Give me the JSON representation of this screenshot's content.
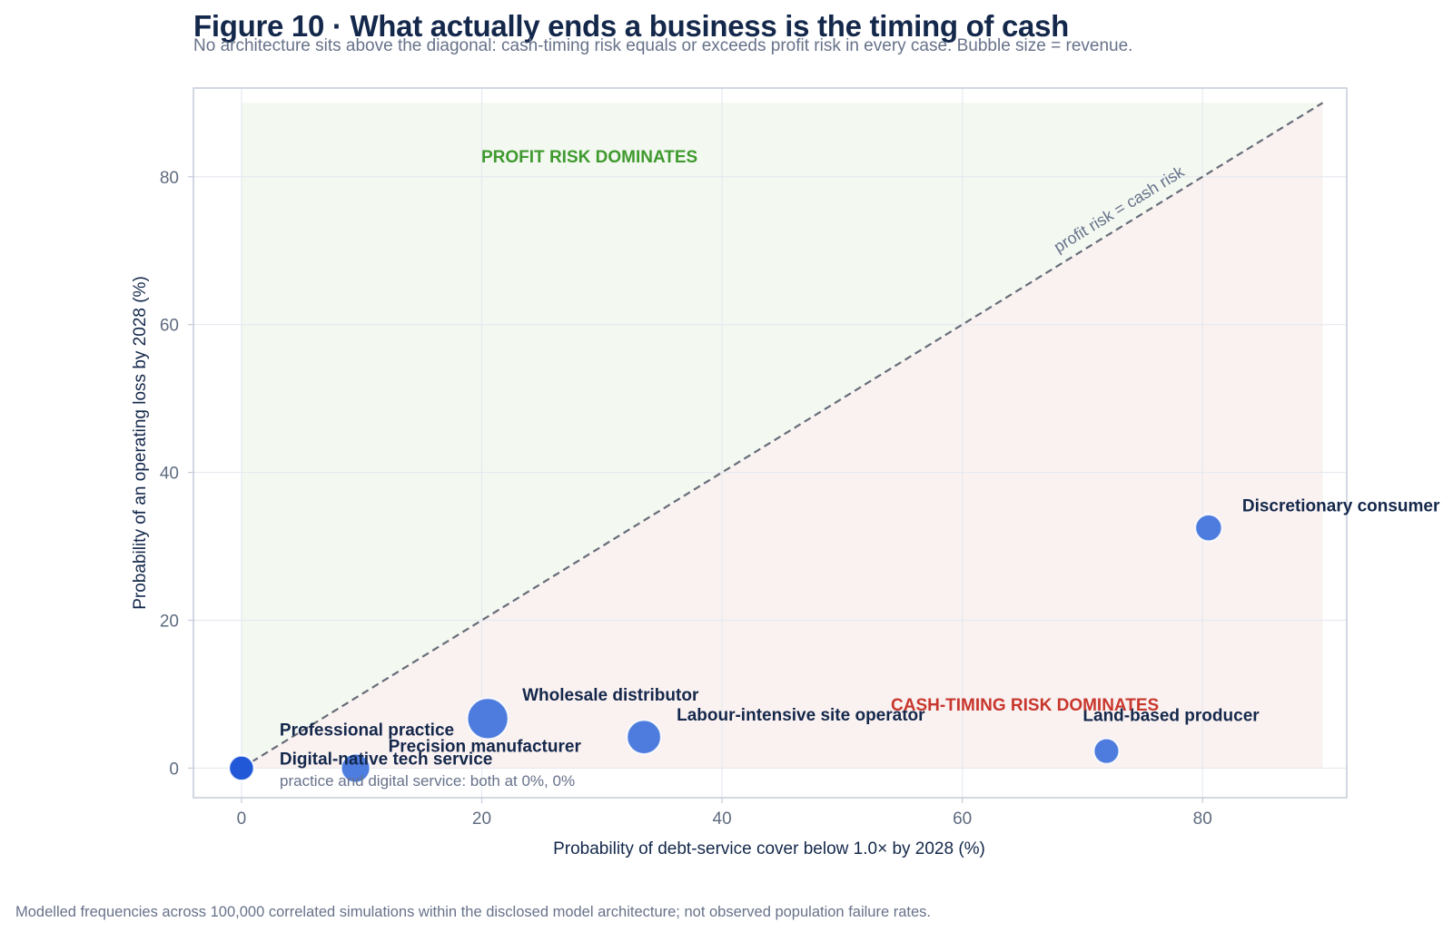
{
  "figure": {
    "title": "Figure 10  ·  What actually ends a business is the timing of cash",
    "subtitle": "No architecture sits above the diagonal: cash-timing risk equals or exceeds profit risk in every case. Bubble size = revenue.",
    "footnote": "Modelled frequencies across 100,000 correlated simulations within the disclosed model architecture; not observed population failure rates."
  },
  "colors": {
    "bubble": "#3a6fdc",
    "bubble_dark": "#1f56d6",
    "profit_region": "#f3f8f1",
    "cash_region": "#faf1f1",
    "profit_label": "#3f9a2e",
    "cash_label": "#c8372d",
    "diagonal": "#676d78",
    "grid": "#e6eaf0",
    "frame": "#c3ccd8"
  },
  "chart_data": {
    "type": "scatter",
    "xlabel": "Probability of debt-service cover below 1.0× by 2028 (%)",
    "ylabel": "Probability of an operating loss by 2028 (%)",
    "xlim": [
      -4,
      92
    ],
    "ylim": [
      -4,
      92
    ],
    "xticks": [
      "0",
      "20",
      "40",
      "60",
      "80"
    ],
    "yticks": [
      "0",
      "20",
      "40",
      "60",
      "80"
    ],
    "grid": true,
    "diagonal": {
      "from": [
        0,
        0
      ],
      "to": [
        90,
        90
      ],
      "label": "profit risk = cash risk"
    },
    "regions": {
      "profit": "PROFIT RISK DOMINATES",
      "cash": "CASH-TIMING RISK DOMINATES"
    },
    "annotation": "practice and digital service: both at 0%, 0%",
    "points": [
      {
        "name": "Professional practice",
        "x": 0,
        "y": 0,
        "size": 1.0
      },
      {
        "name": "Digital-native tech service",
        "x": 0,
        "y": 0,
        "size": 0.95
      },
      {
        "name": "Precision manufacturer",
        "x": 9.5,
        "y": 0,
        "size": 1.3
      },
      {
        "name": "Wholesale distributor",
        "x": 20.5,
        "y": 6.7,
        "size": 2.6
      },
      {
        "name": "Labour-intensive site operator",
        "x": 33.5,
        "y": 4.2,
        "size": 1.8
      },
      {
        "name": "Land-based producer",
        "x": 72,
        "y": 2.3,
        "size": 1.0
      },
      {
        "name": "Discretionary consumer",
        "x": 80.5,
        "y": 32.5,
        "size": 1.1
      }
    ]
  }
}
